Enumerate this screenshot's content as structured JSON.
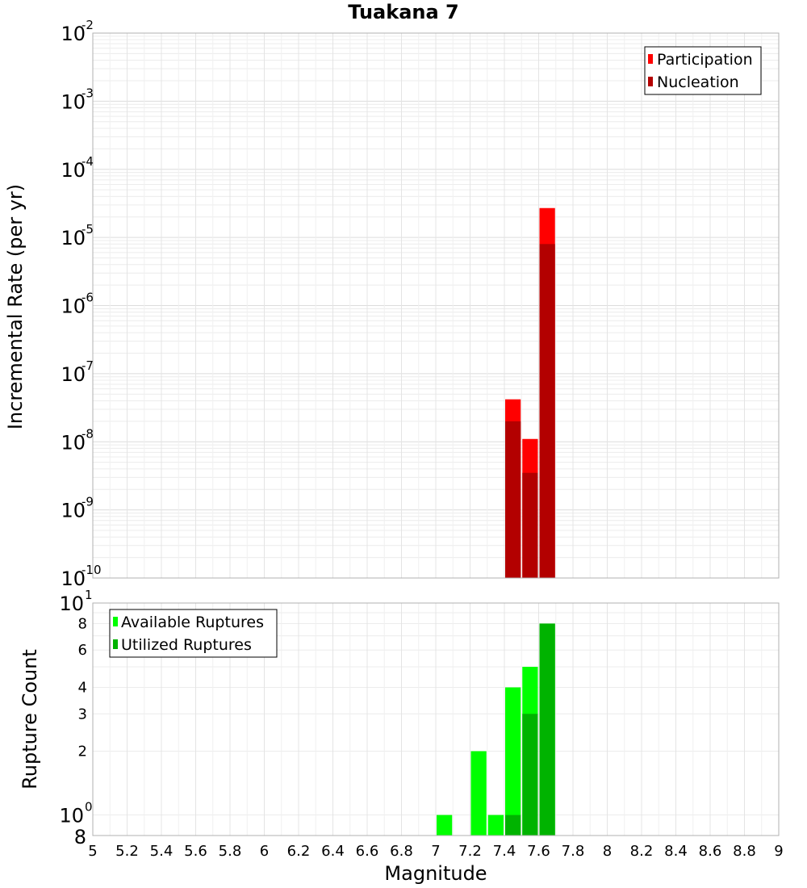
{
  "chart_data": [
    {
      "type": "bar",
      "title": "Tuakana 7",
      "xlabel": "",
      "ylabel": "Incremental Rate (per yr)",
      "yscale": "log",
      "xlim": [
        5,
        9
      ],
      "ylim": [
        1e-10,
        0.01
      ],
      "grid": true,
      "legend_position": "top-right",
      "bar_width": 0.1,
      "x": [
        7.45,
        7.55,
        7.65
      ],
      "series": [
        {
          "name": "Participation",
          "color": "#ff0000",
          "values": [
            4.2e-08,
            1.1e-08,
            2.7e-05
          ]
        },
        {
          "name": "Nucleation",
          "color": "#b30000",
          "values": [
            2e-08,
            3.5e-09,
            8e-06
          ]
        }
      ],
      "y_tick_exponents": [
        "-2",
        "-3",
        "-4",
        "-5",
        "-6",
        "-7",
        "-8",
        "-9",
        "-10"
      ]
    },
    {
      "type": "bar",
      "title": "",
      "xlabel": "Magnitude",
      "ylabel": "Rupture Count",
      "yscale": "log",
      "xlim": [
        5,
        9
      ],
      "ylim": [
        0.8,
        10
      ],
      "grid": true,
      "legend_position": "top-left",
      "bar_width": 0.1,
      "x": [
        7.05,
        7.25,
        7.35,
        7.45,
        7.55,
        7.65
      ],
      "series": [
        {
          "name": "Available Ruptures",
          "color": "#00ff00",
          "values": [
            1,
            2,
            1,
            4,
            5,
            8
          ]
        },
        {
          "name": "Utilized Ruptures",
          "color": "#00b300",
          "values": [
            0,
            0,
            0,
            1,
            3,
            8
          ]
        }
      ],
      "y_tick_labels": [
        "8",
        "6",
        "4",
        "3",
        "2"
      ],
      "y_tick_values": [
        8,
        6,
        4,
        3,
        2
      ],
      "y_pow_labels": [
        {
          "base": "10",
          "exp": "1",
          "value": 10
        },
        {
          "base": "10",
          "exp": "0",
          "value": 1
        }
      ],
      "y_bottom_label": "8",
      "x_tick_labels": [
        "5",
        "5.2",
        "5.4",
        "5.6",
        "5.8",
        "6",
        "6.2",
        "6.4",
        "6.6",
        "6.8",
        "7",
        "7.2",
        "7.4",
        "7.6",
        "7.8",
        "8",
        "8.2",
        "8.4",
        "8.6",
        "8.8",
        "9"
      ]
    }
  ]
}
